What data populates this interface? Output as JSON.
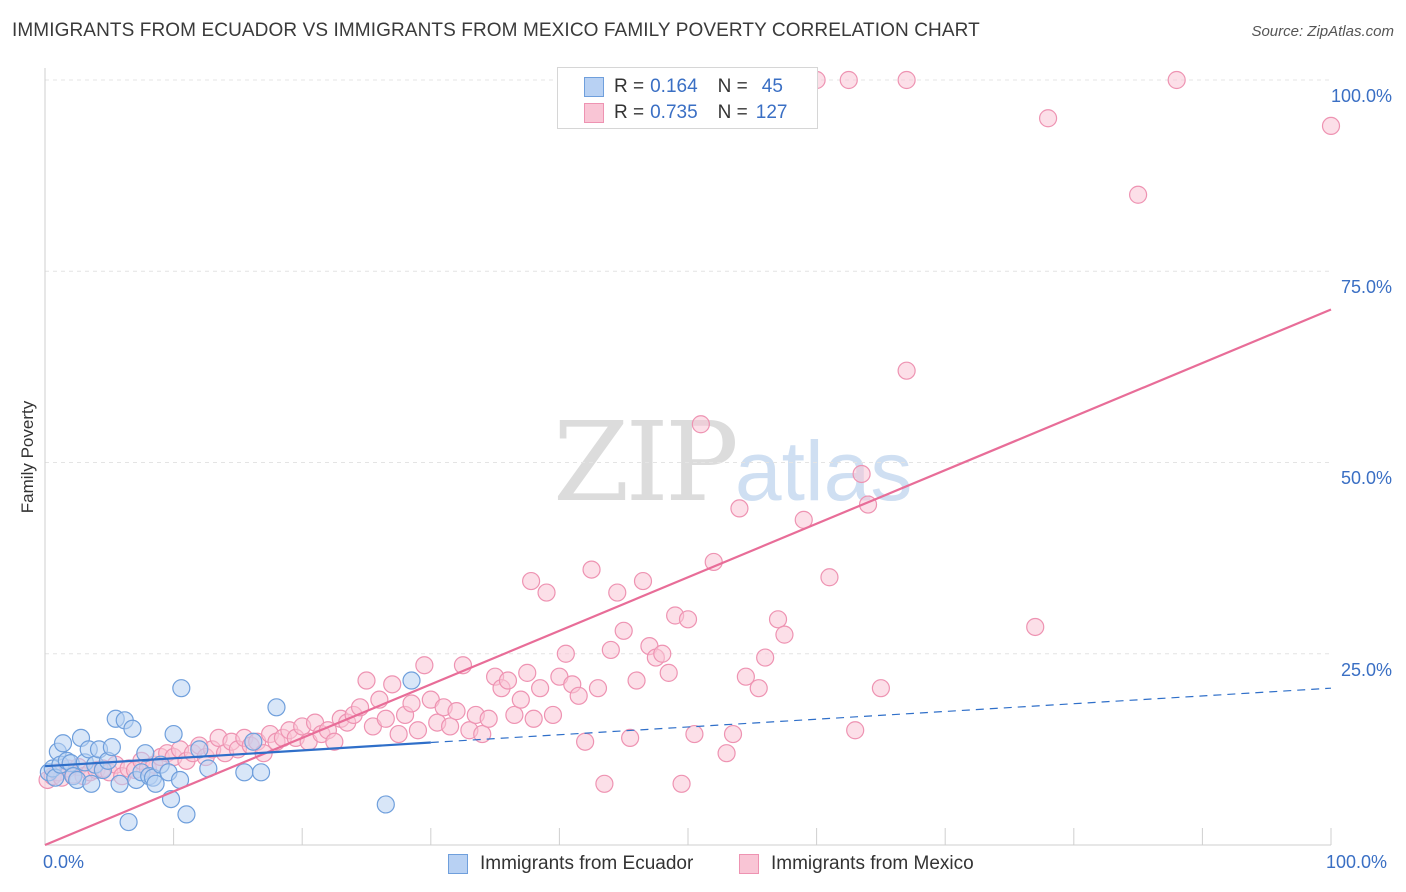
{
  "title": "IMMIGRANTS FROM ECUADOR VS IMMIGRANTS FROM MEXICO FAMILY POVERTY CORRELATION CHART",
  "source": "Source: ZipAtlas.com",
  "watermark": {
    "zip": "ZIP",
    "atlas": "atlas"
  },
  "legend": {
    "ecuador": {
      "r_label": "R =",
      "r_value": "0.164",
      "n_label": "N =",
      "n_value": "45"
    },
    "mexico": {
      "r_label": "R =",
      "r_value": "0.735",
      "n_label": "N =",
      "n_value": "127"
    }
  },
  "colors": {
    "ecuador_fill": "#b8d1f3",
    "ecuador_stroke": "#6f9fdc",
    "ecuador_line": "#2f6fc9",
    "mexico_fill": "#f9c5d5",
    "mexico_stroke": "#ee93b2",
    "mexico_line": "#e86d98",
    "tick_text": "#3a6fc4"
  },
  "chart_data": {
    "type": "scatter",
    "title": "IMMIGRANTS FROM ECUADOR VS IMMIGRANTS FROM MEXICO FAMILY POVERTY CORRELATION CHART",
    "xlabel": "",
    "ylabel": "Family Poverty",
    "xlim": [
      0,
      100
    ],
    "ylim": [
      0,
      100
    ],
    "x_tick_labels": [
      "0.0%",
      "100.0%"
    ],
    "y_tick_labels": [
      "25.0%",
      "50.0%",
      "75.0%",
      "100.0%"
    ],
    "legend_position": "bottom-center",
    "series": [
      {
        "name": "Immigrants from Ecuador",
        "r": 0.164,
        "n": 45,
        "trend": {
          "x0": 0,
          "y0": 10.3,
          "x1": 30,
          "y1": 13.4,
          "dashed_to_x": 100,
          "dashed_y1": 20.5
        },
        "points": [
          [
            0.3,
            9.5
          ],
          [
            0.6,
            10.0
          ],
          [
            0.8,
            8.8
          ],
          [
            1.0,
            12.2
          ],
          [
            1.2,
            10.5
          ],
          [
            1.4,
            13.3
          ],
          [
            1.7,
            11.0
          ],
          [
            2.0,
            10.7
          ],
          [
            2.2,
            9.0
          ],
          [
            2.5,
            8.5
          ],
          [
            2.8,
            14.0
          ],
          [
            3.1,
            10.8
          ],
          [
            3.4,
            12.5
          ],
          [
            3.6,
            8.0
          ],
          [
            3.9,
            10.5
          ],
          [
            4.2,
            12.5
          ],
          [
            4.5,
            9.8
          ],
          [
            4.9,
            11.0
          ],
          [
            5.2,
            12.8
          ],
          [
            5.5,
            16.5
          ],
          [
            5.8,
            8.0
          ],
          [
            6.2,
            16.3
          ],
          [
            6.5,
            3.0
          ],
          [
            6.8,
            15.2
          ],
          [
            7.1,
            8.5
          ],
          [
            7.5,
            9.5
          ],
          [
            7.8,
            12.0
          ],
          [
            8.1,
            9.0
          ],
          [
            8.4,
            8.8
          ],
          [
            8.6,
            8.0
          ],
          [
            9.0,
            10.5
          ],
          [
            9.6,
            9.5
          ],
          [
            9.8,
            6.0
          ],
          [
            10.0,
            14.5
          ],
          [
            10.5,
            8.5
          ],
          [
            10.6,
            20.5
          ],
          [
            11.0,
            4.0
          ],
          [
            12.0,
            12.5
          ],
          [
            12.7,
            10.0
          ],
          [
            15.5,
            9.5
          ],
          [
            16.2,
            13.5
          ],
          [
            16.8,
            9.5
          ],
          [
            18.0,
            18.0
          ],
          [
            26.5,
            5.3
          ],
          [
            28.5,
            21.5
          ]
        ]
      },
      {
        "name": "Immigrants from Mexico",
        "r": 0.735,
        "n": 127,
        "trend": {
          "x0": 0,
          "y0": 0,
          "x1": 100,
          "y1": 70
        },
        "points": [
          [
            0.2,
            8.5
          ],
          [
            0.6,
            9.0
          ],
          [
            1.0,
            9.5
          ],
          [
            1.3,
            8.8
          ],
          [
            1.8,
            10.0
          ],
          [
            2.2,
            9.2
          ],
          [
            2.6,
            10.2
          ],
          [
            3.0,
            9.0
          ],
          [
            3.5,
            9.5
          ],
          [
            4.0,
            9.8
          ],
          [
            4.5,
            10.0
          ],
          [
            5.0,
            9.5
          ],
          [
            5.5,
            10.5
          ],
          [
            6.0,
            9.0
          ],
          [
            6.5,
            10.0
          ],
          [
            7.0,
            9.8
          ],
          [
            7.5,
            11.0
          ],
          [
            8.0,
            10.0
          ],
          [
            8.5,
            10.5
          ],
          [
            9.0,
            11.5
          ],
          [
            9.5,
            12.0
          ],
          [
            10.0,
            11.5
          ],
          [
            10.5,
            12.5
          ],
          [
            11.0,
            11.0
          ],
          [
            11.5,
            12.0
          ],
          [
            12.0,
            13.0
          ],
          [
            12.5,
            11.5
          ],
          [
            13.0,
            12.5
          ],
          [
            13.5,
            14.0
          ],
          [
            14.0,
            12.0
          ],
          [
            14.5,
            13.5
          ],
          [
            15.0,
            12.5
          ],
          [
            15.5,
            14.0
          ],
          [
            16.0,
            13.0
          ],
          [
            16.5,
            13.5
          ],
          [
            17.0,
            12.0
          ],
          [
            17.5,
            14.5
          ],
          [
            18.0,
            13.5
          ],
          [
            18.5,
            14.0
          ],
          [
            19.0,
            15.0
          ],
          [
            19.5,
            14.0
          ],
          [
            20.0,
            15.5
          ],
          [
            20.5,
            13.5
          ],
          [
            21.0,
            16.0
          ],
          [
            21.5,
            14.5
          ],
          [
            22.0,
            15.0
          ],
          [
            22.5,
            13.5
          ],
          [
            23.0,
            16.5
          ],
          [
            23.5,
            16.0
          ],
          [
            24.0,
            17.0
          ],
          [
            24.5,
            18.0
          ],
          [
            25.0,
            21.5
          ],
          [
            25.5,
            15.5
          ],
          [
            26.0,
            19.0
          ],
          [
            26.5,
            16.5
          ],
          [
            27.0,
            21.0
          ],
          [
            27.5,
            14.5
          ],
          [
            28.0,
            17.0
          ],
          [
            28.5,
            18.5
          ],
          [
            29.0,
            15.0
          ],
          [
            29.5,
            23.5
          ],
          [
            30.0,
            19.0
          ],
          [
            30.5,
            16.0
          ],
          [
            31.0,
            18.0
          ],
          [
            31.5,
            15.5
          ],
          [
            32.0,
            17.5
          ],
          [
            32.5,
            23.5
          ],
          [
            33.0,
            15.0
          ],
          [
            33.5,
            17.0
          ],
          [
            34.0,
            14.5
          ],
          [
            34.5,
            16.5
          ],
          [
            35.0,
            22.0
          ],
          [
            35.5,
            20.5
          ],
          [
            36.0,
            21.5
          ],
          [
            36.5,
            17.0
          ],
          [
            37.0,
            19.0
          ],
          [
            37.5,
            22.5
          ],
          [
            37.8,
            34.5
          ],
          [
            38.0,
            16.5
          ],
          [
            38.5,
            20.5
          ],
          [
            39.0,
            33.0
          ],
          [
            39.5,
            17.0
          ],
          [
            40.0,
            22.0
          ],
          [
            40.5,
            25.0
          ],
          [
            41.0,
            21.0
          ],
          [
            41.5,
            19.5
          ],
          [
            42.0,
            13.5
          ],
          [
            42.5,
            36.0
          ],
          [
            43.0,
            20.5
          ],
          [
            43.5,
            8.0
          ],
          [
            44.0,
            25.5
          ],
          [
            44.5,
            33.0
          ],
          [
            45.0,
            28.0
          ],
          [
            45.5,
            14.0
          ],
          [
            46.0,
            21.5
          ],
          [
            46.5,
            34.5
          ],
          [
            47.0,
            26.0
          ],
          [
            47.5,
            24.5
          ],
          [
            48.0,
            25.0
          ],
          [
            48.5,
            22.5
          ],
          [
            49.0,
            30.0
          ],
          [
            49.5,
            8.0
          ],
          [
            50.0,
            29.5
          ],
          [
            50.5,
            14.5
          ],
          [
            51.0,
            55.0
          ],
          [
            52.0,
            37.0
          ],
          [
            53.0,
            12.0
          ],
          [
            53.5,
            14.5
          ],
          [
            54.0,
            44.0
          ],
          [
            54.5,
            22.0
          ],
          [
            55.5,
            20.5
          ],
          [
            56.0,
            24.5
          ],
          [
            57.0,
            29.5
          ],
          [
            57.5,
            27.5
          ],
          [
            59.0,
            42.5
          ],
          [
            61.0,
            35.0
          ],
          [
            63.0,
            15.0
          ],
          [
            63.5,
            48.5
          ],
          [
            64.0,
            44.5
          ],
          [
            65.0,
            20.5
          ],
          [
            67.0,
            62.0
          ],
          [
            77.0,
            28.5
          ],
          [
            78.0,
            95.0
          ],
          [
            85.0,
            85.0
          ],
          [
            100.0,
            94.0
          ],
          [
            60.0,
            100.0
          ],
          [
            62.5,
            100.0
          ],
          [
            67.0,
            100.0
          ],
          [
            88.0,
            100.0
          ]
        ]
      }
    ]
  },
  "bottom_legend": {
    "ecuador": "Immigrants from Ecuador",
    "mexico": "Immigrants from Mexico"
  }
}
